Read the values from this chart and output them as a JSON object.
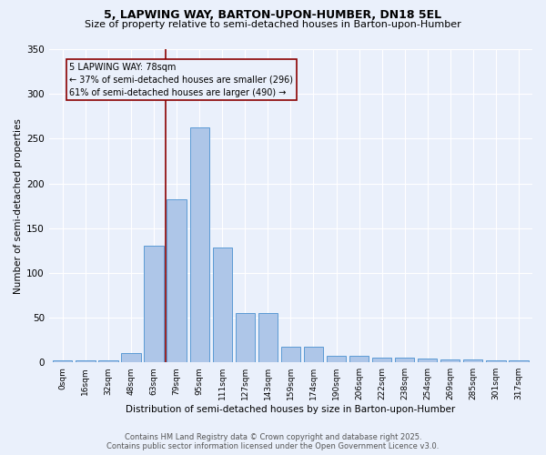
{
  "title": "5, LAPWING WAY, BARTON-UPON-HUMBER, DN18 5EL",
  "subtitle": "Size of property relative to semi-detached houses in Barton-upon-Humber",
  "xlabel": "Distribution of semi-detached houses by size in Barton-upon-Humber",
  "ylabel": "Number of semi-detached properties",
  "categories": [
    "0sqm",
    "16sqm",
    "32sqm",
    "48sqm",
    "63sqm",
    "79sqm",
    "95sqm",
    "111sqm",
    "127sqm",
    "143sqm",
    "159sqm",
    "174sqm",
    "190sqm",
    "206sqm",
    "222sqm",
    "238sqm",
    "254sqm",
    "269sqm",
    "285sqm",
    "301sqm",
    "317sqm"
  ],
  "values": [
    2,
    2,
    2,
    10,
    130,
    182,
    263,
    128,
    55,
    55,
    18,
    18,
    7,
    7,
    5,
    5,
    4,
    3,
    3,
    2,
    2
  ],
  "bar_color": "#aec6e8",
  "bar_edge_color": "#5b9bd5",
  "background_color": "#eaf0fb",
  "grid_color": "#ffffff",
  "vline_color": "#8b0000",
  "annotation_box_color": "#8b0000",
  "annotation_text_line1": "5 LAPWING WAY: 78sqm",
  "annotation_text_line2": "← 37% of semi-detached houses are smaller (296)",
  "annotation_text_line3": "61% of semi-detached houses are larger (490) →",
  "ylim": [
    0,
    350
  ],
  "yticks": [
    0,
    50,
    100,
    150,
    200,
    250,
    300,
    350
  ],
  "footer_line1": "Contains HM Land Registry data © Crown copyright and database right 2025.",
  "footer_line2": "Contains public sector information licensed under the Open Government Licence v3.0.",
  "vline_bin_index": 5,
  "title_fontsize": 9,
  "subtitle_fontsize": 8,
  "ylabel_fontsize": 7.5,
  "xlabel_fontsize": 7.5,
  "ytick_fontsize": 7.5,
  "xtick_fontsize": 6.5,
  "annotation_fontsize": 7,
  "footer_fontsize": 6
}
